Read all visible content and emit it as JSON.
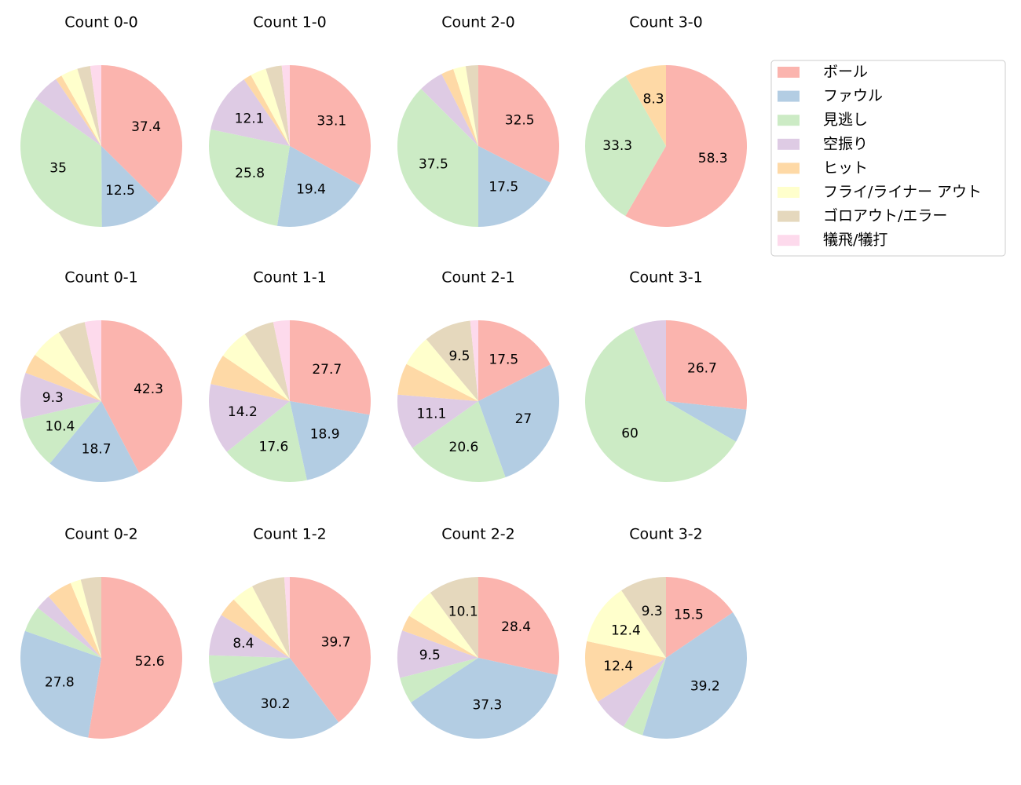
{
  "chart_data": [
    {
      "type": "pie",
      "title": "Count 0-0",
      "categories": [
        "ボール",
        "ファウル",
        "見逃し",
        "空振り",
        "ヒット",
        "フライ/ライナー アウト",
        "ゴロアウト/エラー",
        "犠飛/犠打"
      ],
      "colors": [
        "#fbb4ae",
        "#b3cde3",
        "#ccebc5",
        "#decbe4",
        "#fed9a6",
        "#ffffcc",
        "#e5d8bd",
        "#fddaec"
      ],
      "values": [
        37.4,
        12.5,
        35.0,
        5.6,
        1.3,
        3.4,
        2.6,
        2.2
      ]
    },
    {
      "type": "pie",
      "title": "Count 1-0",
      "categories": [
        "ボール",
        "ファウル",
        "見逃し",
        "空振り",
        "ヒット",
        "フライ/ライナー アウト",
        "ゴロアウト/エラー",
        "犠飛/犠打"
      ],
      "colors": [
        "#fbb4ae",
        "#b3cde3",
        "#ccebc5",
        "#decbe4",
        "#fed9a6",
        "#ffffcc",
        "#e5d8bd",
        "#fddaec"
      ],
      "values": [
        33.1,
        19.4,
        25.8,
        12.1,
        1.6,
        3.2,
        3.2,
        1.6
      ]
    },
    {
      "type": "pie",
      "title": "Count 2-0",
      "categories": [
        "ボール",
        "ファウル",
        "見逃し",
        "空振り",
        "ヒット",
        "フライ/ライナー アウト",
        "ゴロアウト/エラー",
        "犠飛/犠打"
      ],
      "colors": [
        "#fbb4ae",
        "#b3cde3",
        "#ccebc5",
        "#decbe4",
        "#fed9a6",
        "#ffffcc",
        "#e5d8bd",
        "#fddaec"
      ],
      "values": [
        32.5,
        17.5,
        37.5,
        5.0,
        2.5,
        2.5,
        2.5,
        0
      ]
    },
    {
      "type": "pie",
      "title": "Count 3-0",
      "categories": [
        "ボール",
        "ファウル",
        "見逃し",
        "空振り",
        "ヒット",
        "フライ/ライナー アウト",
        "ゴロアウト/エラー",
        "犠飛/犠打"
      ],
      "colors": [
        "#fbb4ae",
        "#b3cde3",
        "#ccebc5",
        "#decbe4",
        "#fed9a6",
        "#ffffcc",
        "#e5d8bd",
        "#fddaec"
      ],
      "values": [
        58.3,
        0,
        33.3,
        0,
        8.3,
        0,
        0,
        0
      ]
    },
    {
      "type": "pie",
      "title": "Count 0-1",
      "categories": [
        "ボール",
        "ファウル",
        "見逃し",
        "空振り",
        "ヒット",
        "フライ/ライナー アウト",
        "ゴロアウト/エラー",
        "犠飛/犠打"
      ],
      "colors": [
        "#fbb4ae",
        "#b3cde3",
        "#ccebc5",
        "#decbe4",
        "#fed9a6",
        "#ffffcc",
        "#e5d8bd",
        "#fddaec"
      ],
      "values": [
        42.3,
        18.7,
        10.4,
        9.3,
        4.0,
        6.5,
        5.5,
        3.3
      ]
    },
    {
      "type": "pie",
      "title": "Count 1-1",
      "categories": [
        "ボール",
        "ファウル",
        "見逃し",
        "空振り",
        "ヒット",
        "フライ/ライナー アウト",
        "ゴロアウト/エラー",
        "犠飛/犠打"
      ],
      "colors": [
        "#fbb4ae",
        "#b3cde3",
        "#ccebc5",
        "#decbe4",
        "#fed9a6",
        "#ffffcc",
        "#e5d8bd",
        "#fddaec"
      ],
      "values": [
        27.7,
        18.9,
        17.6,
        14.2,
        6.1,
        6.1,
        6.1,
        3.3
      ]
    },
    {
      "type": "pie",
      "title": "Count 2-1",
      "categories": [
        "ボール",
        "ファウル",
        "見逃し",
        "空振り",
        "ヒット",
        "フライ/ライナー アウト",
        "ゴロアウト/エラー",
        "犠飛/犠打"
      ],
      "colors": [
        "#fbb4ae",
        "#b3cde3",
        "#ccebc5",
        "#decbe4",
        "#fed9a6",
        "#ffffcc",
        "#e5d8bd",
        "#fddaec"
      ],
      "values": [
        17.5,
        27.0,
        20.6,
        11.1,
        6.3,
        6.3,
        9.5,
        1.6
      ]
    },
    {
      "type": "pie",
      "title": "Count 3-1",
      "categories": [
        "ボール",
        "ファウル",
        "見逃し",
        "空振り",
        "ヒット",
        "フライ/ライナー アウト",
        "ゴロアウト/エラー",
        "犠飛/犠打"
      ],
      "colors": [
        "#fbb4ae",
        "#b3cde3",
        "#ccebc5",
        "#decbe4",
        "#fed9a6",
        "#ffffcc",
        "#e5d8bd",
        "#fddaec"
      ],
      "values": [
        26.7,
        6.7,
        60.0,
        6.7,
        0,
        0,
        0,
        0
      ]
    },
    {
      "type": "pie",
      "title": "Count 0-2",
      "categories": [
        "ボール",
        "ファウル",
        "見逃し",
        "空振り",
        "ヒット",
        "フライ/ライナー アウト",
        "ゴロアウト/エラー",
        "犠飛/犠打"
      ],
      "colors": [
        "#fbb4ae",
        "#b3cde3",
        "#ccebc5",
        "#decbe4",
        "#fed9a6",
        "#ffffcc",
        "#e5d8bd",
        "#fddaec"
      ],
      "values": [
        52.6,
        27.8,
        5.2,
        3.1,
        5.1,
        2.1,
        4.1,
        0
      ]
    },
    {
      "type": "pie",
      "title": "Count 1-2",
      "categories": [
        "ボール",
        "ファウル",
        "見逃し",
        "空振り",
        "ヒット",
        "フライ/ライナー アウト",
        "ゴロアウト/エラー",
        "犠飛/犠打"
      ],
      "colors": [
        "#fbb4ae",
        "#b3cde3",
        "#ccebc5",
        "#decbe4",
        "#fed9a6",
        "#ffffcc",
        "#e5d8bd",
        "#fddaec"
      ],
      "values": [
        39.7,
        30.2,
        5.6,
        8.4,
        3.9,
        4.5,
        6.6,
        1.1
      ]
    },
    {
      "type": "pie",
      "title": "Count 2-2",
      "categories": [
        "ボール",
        "ファウル",
        "見逃し",
        "空振り",
        "ヒット",
        "フライ/ライナー アウト",
        "ゴロアウト/エラー",
        "犠飛/犠打"
      ],
      "colors": [
        "#fbb4ae",
        "#b3cde3",
        "#ccebc5",
        "#decbe4",
        "#fed9a6",
        "#ffffcc",
        "#e5d8bd",
        "#fddaec"
      ],
      "values": [
        28.4,
        37.3,
        5.3,
        9.5,
        3.2,
        6.2,
        10.1,
        0
      ]
    },
    {
      "type": "pie",
      "title": "Count 3-2",
      "categories": [
        "ボール",
        "ファウル",
        "見逃し",
        "空振り",
        "ヒット",
        "フライ/ライナー アウト",
        "ゴロアウト/エラー",
        "犠飛/犠打"
      ],
      "colors": [
        "#fbb4ae",
        "#b3cde3",
        "#ccebc5",
        "#decbe4",
        "#fed9a6",
        "#ffffcc",
        "#e5d8bd",
        "#fddaec"
      ],
      "values": [
        15.5,
        39.2,
        4.1,
        7.1,
        12.4,
        12.4,
        9.3,
        0
      ]
    }
  ]
}
